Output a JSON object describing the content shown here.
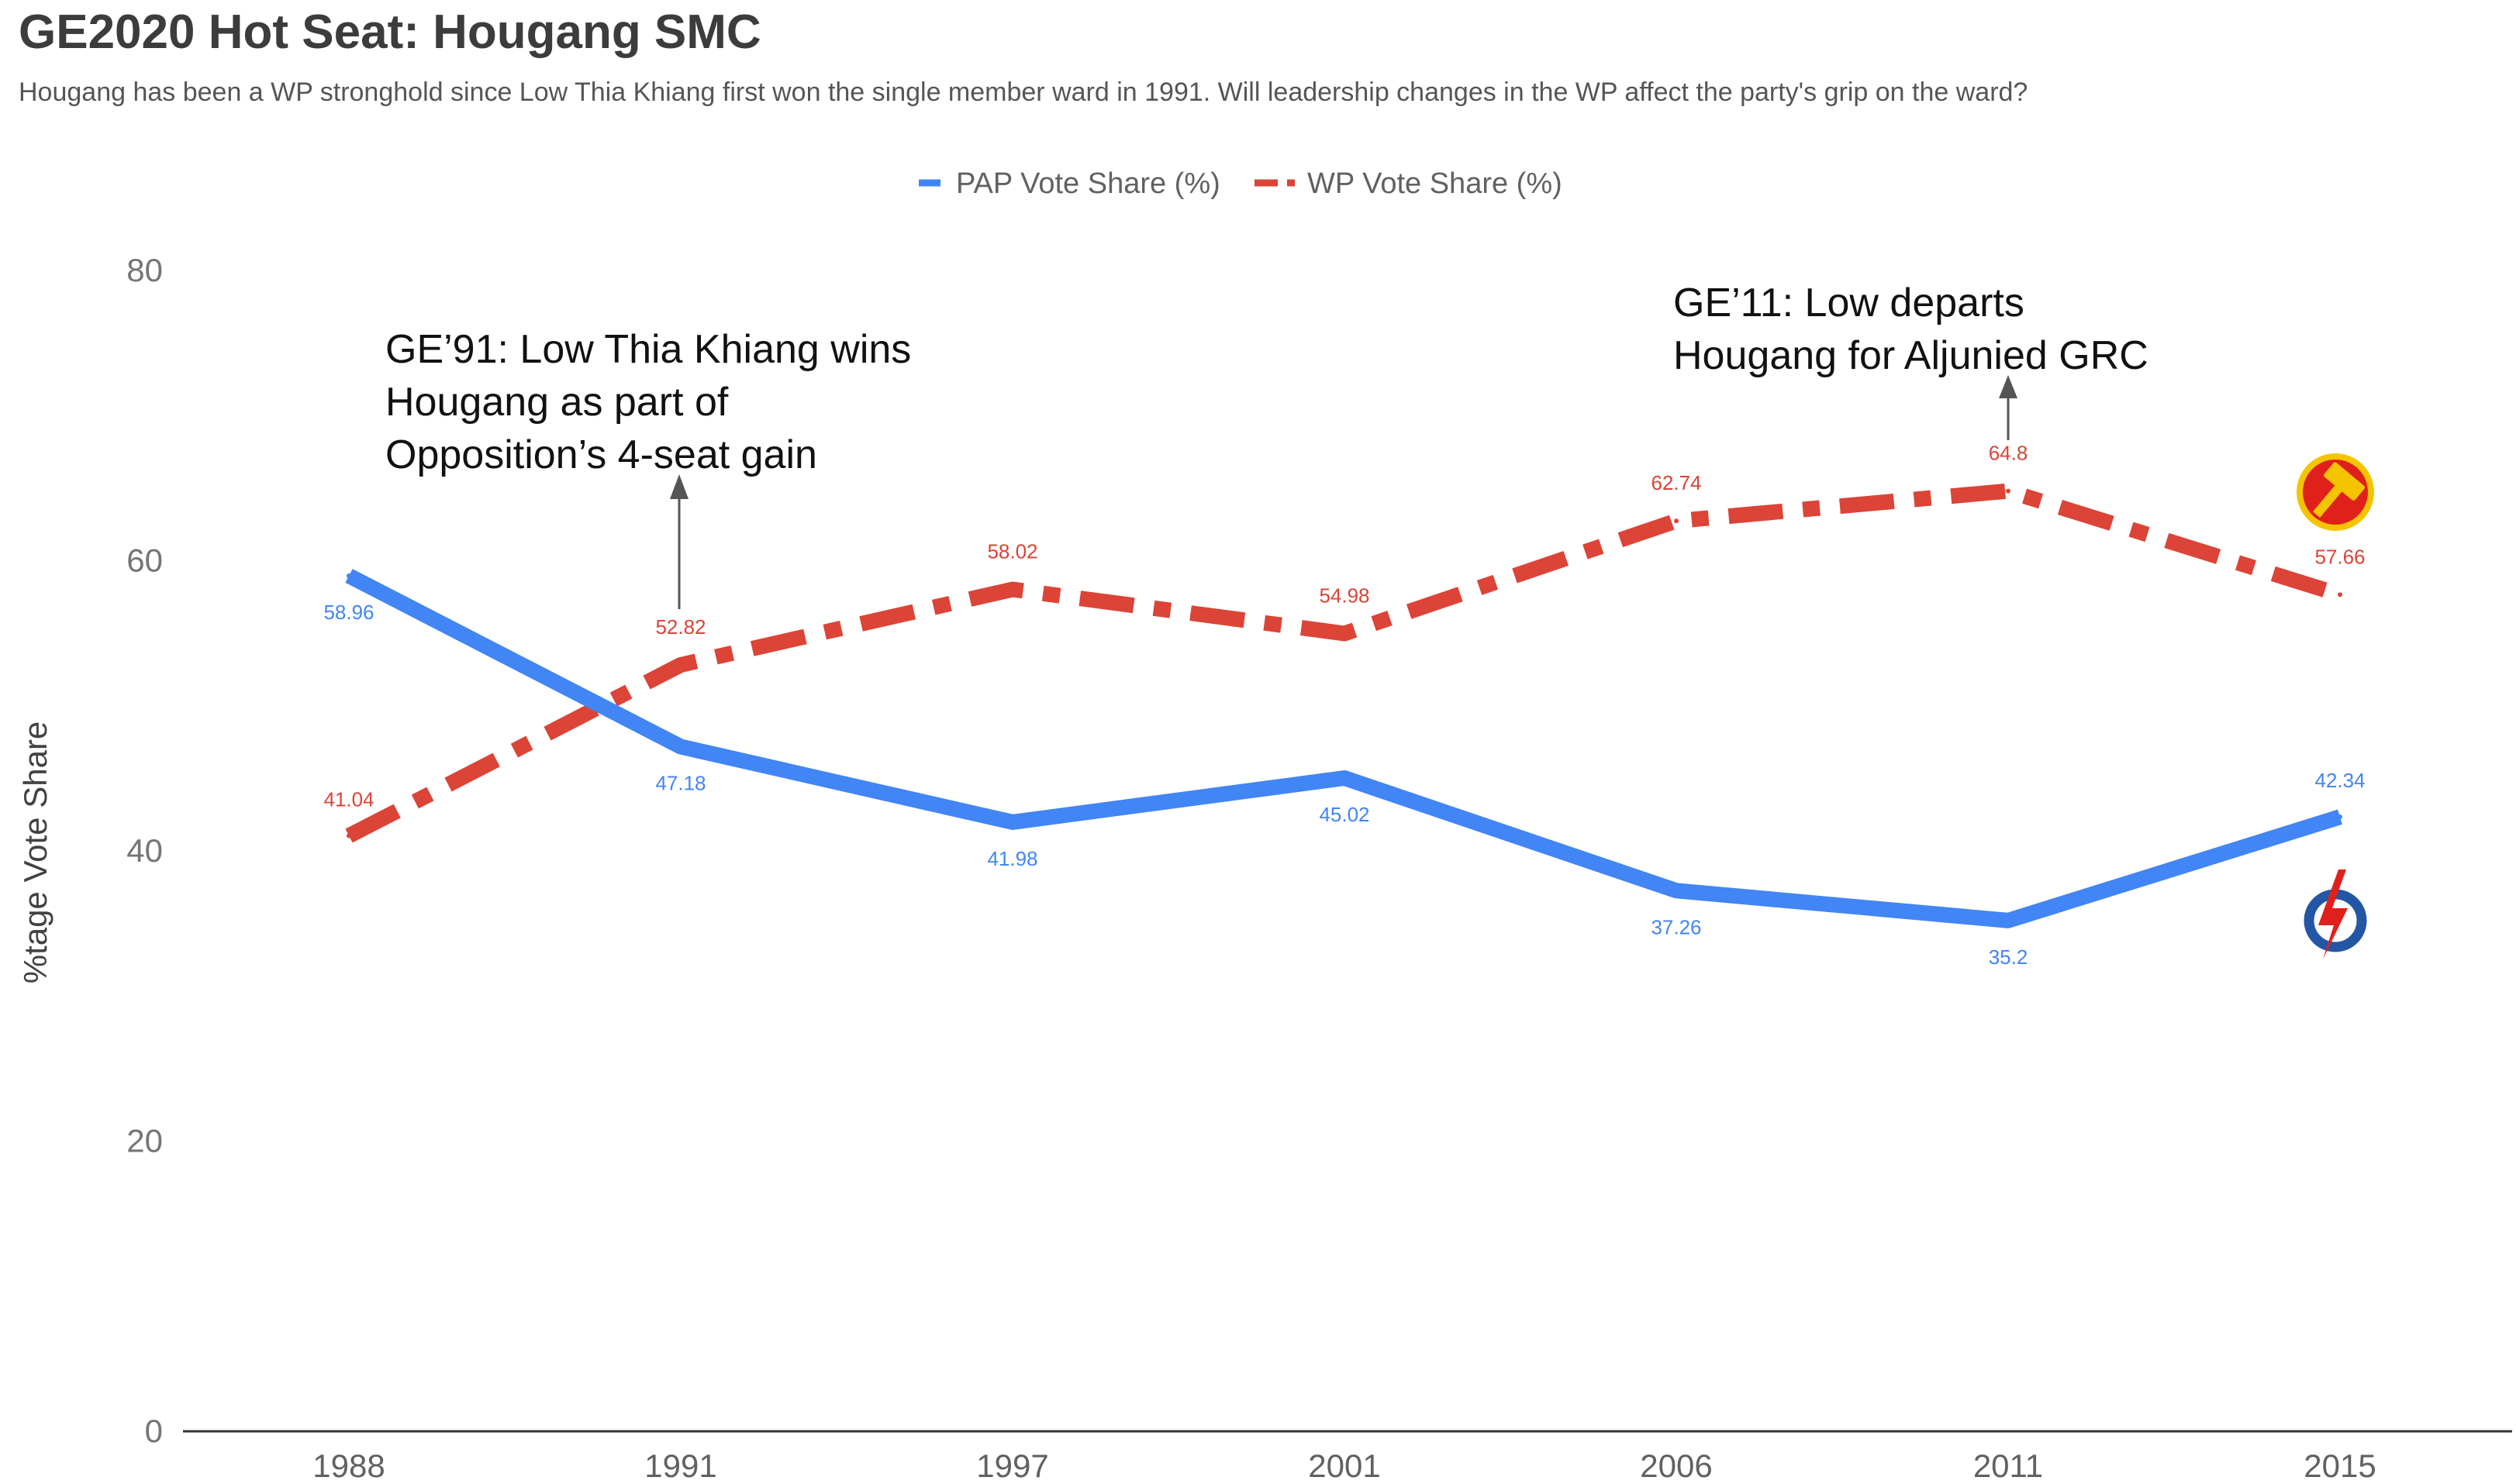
{
  "title": "GE2020 Hot Seat: Hougang SMC",
  "subtitle": "Hougang has been a WP stronghold since Low Thia Khiang first won the single member ward in 1991. Will leadership changes in the WP affect the party's grip on the ward?",
  "chart_data": {
    "type": "line",
    "categories": [
      "1988",
      "1991",
      "1997",
      "2001",
      "2006",
      "2011",
      "2015"
    ],
    "ylabel": "%tage Vote Share",
    "ylim": [
      0,
      80
    ],
    "yticks": [
      0,
      20,
      40,
      60,
      80
    ],
    "grid": false,
    "legend_position": "top",
    "series": [
      {
        "name": "PAP Vote Share (%)",
        "values": [
          58.96,
          47.18,
          41.98,
          45.02,
          37.26,
          35.2,
          42.34
        ],
        "color": "#4285f4",
        "style": "solid"
      },
      {
        "name": "WP Vote Share (%)",
        "values": [
          41.04,
          52.82,
          58.02,
          54.98,
          62.74,
          64.8,
          57.66
        ],
        "color": "#db4437",
        "style": "dash-dot"
      }
    ],
    "annotations": [
      {
        "lines": [
          "GE’91: Low Thia Khiang wins",
          "Hougang as part of",
          "Opposition’s 4-seat gain"
        ],
        "category": "1991"
      },
      {
        "lines": [
          "GE’11: Low departs",
          "Hougang for Aljunied GRC"
        ],
        "category": "2011"
      }
    ],
    "logos": [
      {
        "name": "wp-hammer-logo-icon",
        "series": "WP Vote Share (%)",
        "color": "#db4437"
      },
      {
        "name": "pap-lightning-logo-icon",
        "series": "PAP Vote Share (%)",
        "color": "#2456a6"
      }
    ]
  }
}
